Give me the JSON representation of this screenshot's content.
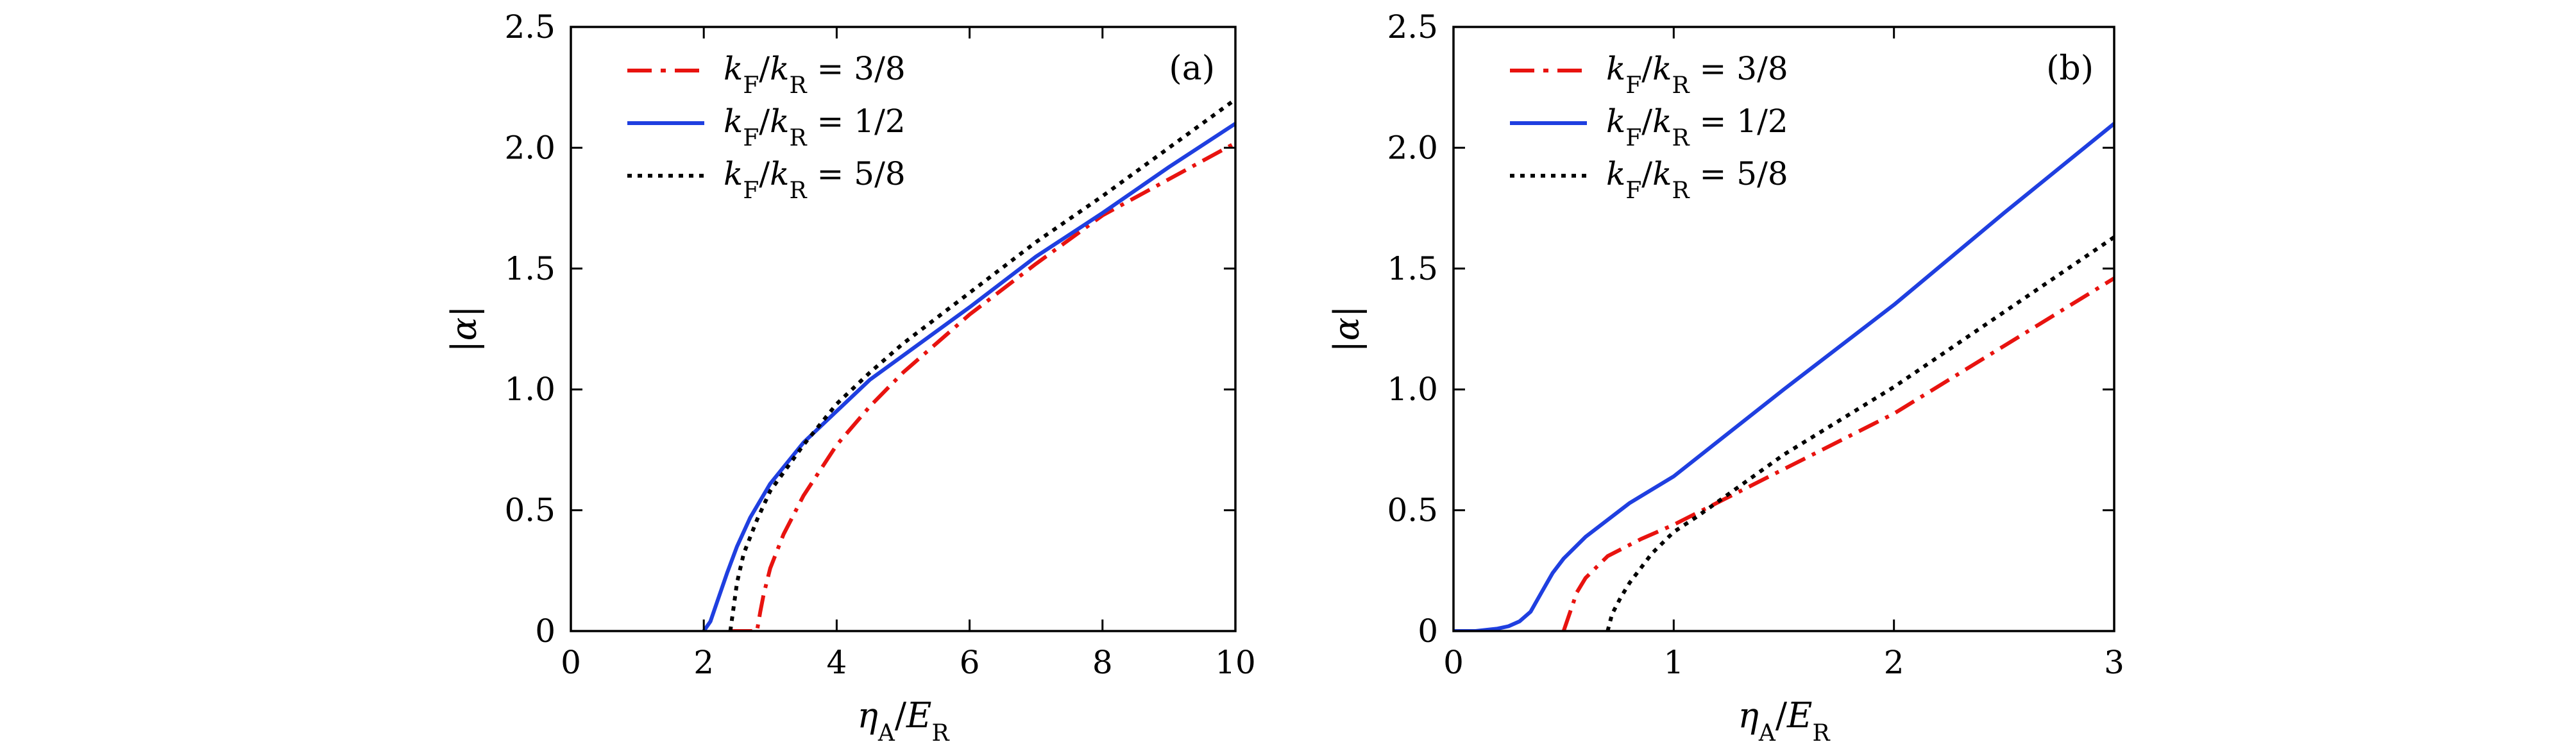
{
  "colors": {
    "red": "#e8130f",
    "blue": "#1f3fe0",
    "black": "#000000"
  },
  "chart_data": [
    {
      "type": "line",
      "panel_label": "(a)",
      "xlabel": "ηA/ER",
      "ylabel": "|α|",
      "xlim": [
        0,
        10
      ],
      "ylim": [
        0,
        2.5
      ],
      "xticks": [
        0,
        2,
        4,
        6,
        8,
        10
      ],
      "xtick_labels": [
        "0",
        "2",
        "4",
        "6",
        "8",
        "10"
      ],
      "yticks": [
        0,
        0.5,
        1.0,
        1.5,
        2.0,
        2.5
      ],
      "ytick_labels": [
        "0",
        "0.5",
        "1.0",
        "1.5",
        "2.0",
        "2.5"
      ],
      "legend_position": "top-left",
      "series": [
        {
          "name": "kF/kR = 3/8",
          "style": "dashdot",
          "color": "#e8130f",
          "x": [
            2.4,
            2.8,
            2.85,
            2.9,
            3.0,
            3.2,
            3.5,
            4.0,
            4.5,
            5,
            6,
            7,
            8,
            9,
            10
          ],
          "y": [
            0,
            0,
            0.08,
            0.15,
            0.26,
            0.4,
            0.56,
            0.77,
            0.93,
            1.07,
            1.31,
            1.52,
            1.72,
            1.87,
            2.02
          ]
        },
        {
          "name": "kF/kR = 1/2",
          "style": "solid",
          "color": "#1f3fe0",
          "x": [
            2.0,
            2.1,
            2.2,
            2.35,
            2.5,
            2.7,
            3.0,
            3.5,
            4.0,
            4.5,
            5,
            6,
            7,
            8,
            9,
            10
          ],
          "y": [
            0,
            0.04,
            0.12,
            0.24,
            0.35,
            0.47,
            0.61,
            0.78,
            0.91,
            1.04,
            1.14,
            1.34,
            1.55,
            1.73,
            1.92,
            2.1
          ]
        },
        {
          "name": "kF/kR = 5/8",
          "style": "dotted",
          "color": "#000000",
          "x": [
            2.4,
            2.45,
            2.5,
            2.6,
            2.8,
            3.0,
            3.5,
            4.0,
            4.5,
            5,
            6,
            7,
            8,
            9,
            10
          ],
          "y": [
            0,
            0.1,
            0.2,
            0.32,
            0.46,
            0.58,
            0.77,
            0.94,
            1.07,
            1.19,
            1.4,
            1.61,
            1.8,
            2.0,
            2.2
          ]
        }
      ]
    },
    {
      "type": "line",
      "panel_label": "(b)",
      "xlabel": "ηA/ER",
      "ylabel": "|α|",
      "xlim": [
        0,
        3
      ],
      "ylim": [
        0,
        2.5
      ],
      "xticks": [
        0,
        1,
        2,
        3
      ],
      "xtick_labels": [
        "0",
        "1",
        "2",
        "3"
      ],
      "yticks": [
        0,
        0.5,
        1.0,
        1.5,
        2.0,
        2.5
      ],
      "ytick_labels": [
        "0",
        "0.5",
        "1.0",
        "1.5",
        "2.0",
        "2.5"
      ],
      "legend_position": "top-left",
      "series": [
        {
          "name": "kF/kR = 3/8",
          "style": "dashdot",
          "color": "#e8130f",
          "x": [
            0.5,
            0.53,
            0.56,
            0.6,
            0.7,
            0.85,
            1.0,
            1.5,
            2.0,
            2.5,
            3.0
          ],
          "y": [
            0,
            0.08,
            0.16,
            0.22,
            0.31,
            0.38,
            0.44,
            0.67,
            0.9,
            1.18,
            1.46
          ]
        },
        {
          "name": "kF/kR = 1/2",
          "style": "solid",
          "color": "#1f3fe0",
          "x": [
            0,
            0.1,
            0.2,
            0.25,
            0.3,
            0.35,
            0.4,
            0.45,
            0.5,
            0.6,
            0.8,
            1.0,
            1.5,
            2.0,
            2.5,
            3.0
          ],
          "y": [
            0,
            0.0,
            0.01,
            0.02,
            0.04,
            0.08,
            0.16,
            0.24,
            0.3,
            0.39,
            0.53,
            0.64,
            1.0,
            1.35,
            1.73,
            2.1
          ]
        },
        {
          "name": "kF/kR = 5/8",
          "style": "dotted",
          "color": "#000000",
          "x": [
            0.7,
            0.72,
            0.76,
            0.8,
            0.9,
            1.0,
            1.1,
            1.5,
            2.0,
            2.5,
            3.0
          ],
          "y": [
            0,
            0.07,
            0.14,
            0.2,
            0.32,
            0.41,
            0.47,
            0.73,
            1.01,
            1.32,
            1.63
          ]
        }
      ]
    }
  ]
}
